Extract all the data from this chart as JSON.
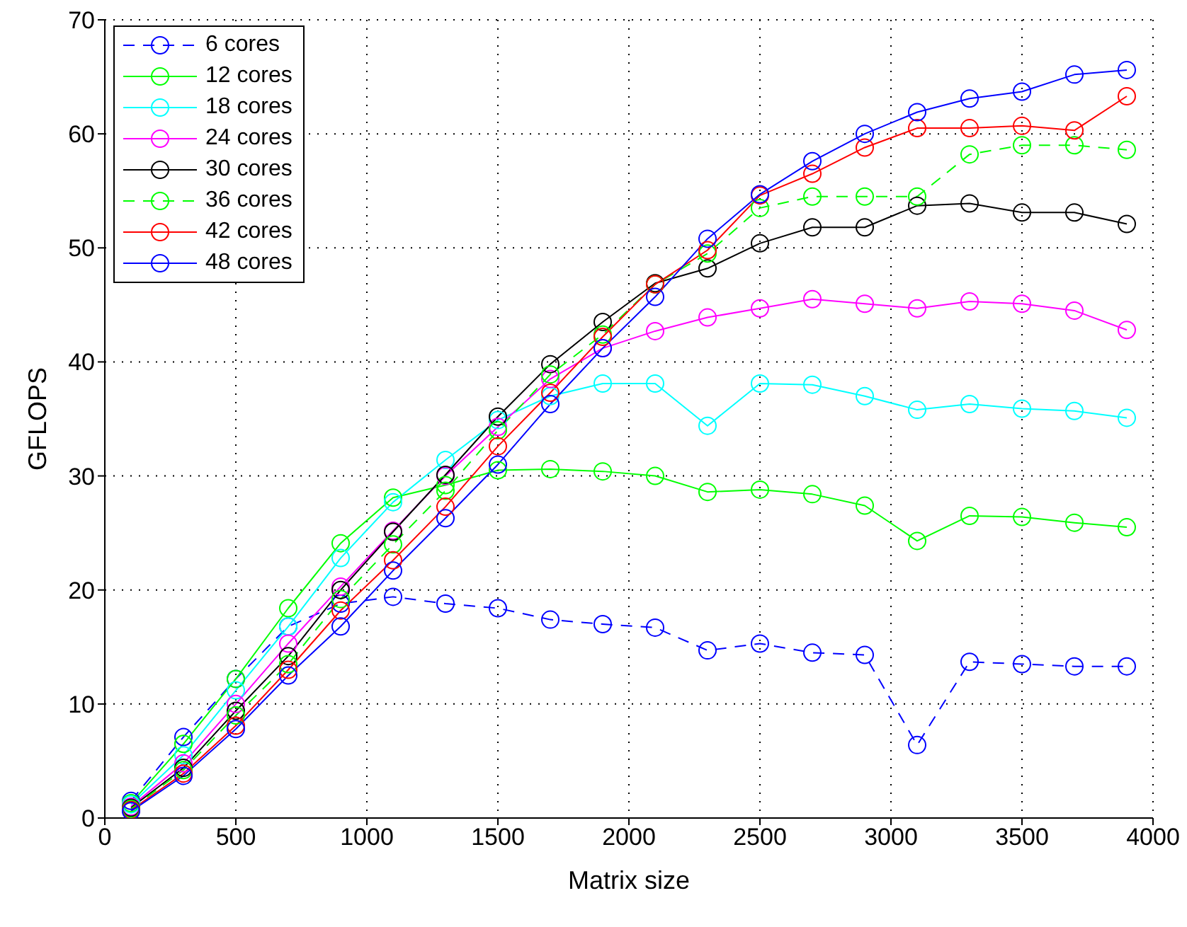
{
  "chart_data": {
    "type": "line",
    "xlabel": "Matrix size",
    "ylabel": "GFLOPS",
    "x": [
      100,
      300,
      500,
      700,
      900,
      1100,
      1300,
      1500,
      1700,
      1900,
      2100,
      2300,
      2500,
      2700,
      2900,
      3100,
      3300,
      3500,
      3700,
      3900
    ],
    "xlim": [
      0,
      4000
    ],
    "xticks": [
      0,
      500,
      1000,
      1500,
      2000,
      2500,
      3000,
      3500,
      4000
    ],
    "ylim": [
      0,
      70
    ],
    "yticks": [
      0,
      10,
      20,
      30,
      40,
      50,
      60,
      70
    ],
    "grid": true,
    "legend": "top left",
    "marker": "circle",
    "series": [
      {
        "name": "6 cores",
        "color": "#0000ff",
        "line_style": "dashed",
        "values": [
          1.5,
          7.1,
          12.2,
          16.8,
          18.8,
          19.4,
          18.8,
          18.4,
          17.4,
          17.0,
          16.7,
          14.7,
          15.3,
          14.5,
          14.3,
          6.4,
          13.7,
          13.5,
          13.3,
          13.3
        ]
      },
      {
        "name": "12 cores",
        "color": "#00ff00",
        "line_style": "solid",
        "values": [
          1.3,
          6.5,
          12.2,
          18.4,
          24.1,
          28.1,
          29.2,
          30.5,
          30.6,
          30.4,
          30.0,
          28.6,
          28.8,
          28.4,
          27.4,
          24.3,
          26.5,
          26.4,
          25.9,
          25.5
        ]
      },
      {
        "name": "18 cores",
        "color": "#00ffff",
        "line_style": "solid",
        "values": [
          1.2,
          5.5,
          11.2,
          16.8,
          22.8,
          27.7,
          31.4,
          34.9,
          37.0,
          38.1,
          38.1,
          34.4,
          38.1,
          38.0,
          37.0,
          35.8,
          36.3,
          35.9,
          35.7,
          35.1
        ]
      },
      {
        "name": "24 cores",
        "color": "#ff00ff",
        "line_style": "solid",
        "values": [
          1.0,
          4.8,
          10.0,
          15.3,
          20.3,
          25.2,
          30.0,
          34.3,
          38.5,
          41.2,
          42.7,
          43.9,
          44.7,
          45.5,
          45.1,
          44.7,
          45.3,
          45.1,
          44.5,
          42.8
        ]
      },
      {
        "name": "30 cores",
        "color": "#000000",
        "line_style": "solid",
        "values": [
          0.9,
          4.4,
          9.4,
          14.2,
          20.0,
          25.1,
          30.1,
          35.2,
          39.8,
          43.5,
          46.9,
          48.2,
          50.4,
          51.8,
          51.8,
          53.7,
          53.9,
          53.1,
          53.1,
          52.1
        ]
      },
      {
        "name": "36 cores",
        "color": "#00ff00",
        "line_style": "dashed",
        "values": [
          0.8,
          4.2,
          9.0,
          13.5,
          19.2,
          24.0,
          28.7,
          34.0,
          38.9,
          42.4,
          46.8,
          49.5,
          53.5,
          54.5,
          54.5,
          54.5,
          58.2,
          59.0,
          59.0,
          58.6
        ]
      },
      {
        "name": "42 cores",
        "color": "#ff0000",
        "line_style": "solid",
        "values": [
          0.7,
          3.9,
          8.1,
          13.0,
          18.2,
          22.6,
          27.3,
          32.6,
          37.3,
          42.2,
          46.8,
          49.8,
          54.6,
          56.5,
          58.8,
          60.5,
          60.5,
          60.7,
          60.3,
          63.3
        ]
      },
      {
        "name": "48 cores",
        "color": "#0000ff",
        "line_style": "solid",
        "values": [
          0.6,
          3.7,
          7.8,
          12.5,
          16.8,
          21.7,
          26.3,
          31.0,
          36.3,
          41.2,
          45.7,
          50.8,
          54.7,
          57.6,
          60.0,
          61.9,
          63.1,
          63.7,
          65.2,
          65.6
        ]
      }
    ]
  }
}
